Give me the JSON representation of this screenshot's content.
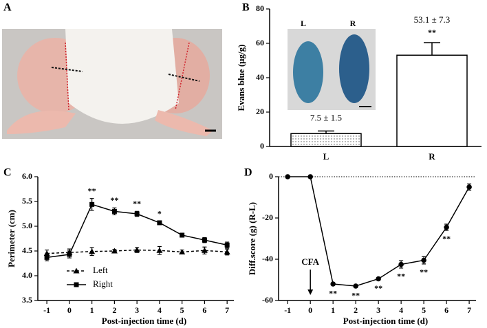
{
  "photo_panel": "A",
  "chart_data": [
    {
      "type": "bar",
      "panel": "B",
      "ylabel": "Evans blue (μg/g)",
      "categories": [
        "L",
        "R"
      ],
      "values": [
        7.5,
        53.1
      ],
      "errors": [
        1.5,
        7.3
      ],
      "value_labels": [
        "7.5 ± 1.5",
        "53.1 ±  7.3"
      ],
      "annotations": [
        null,
        "**"
      ],
      "patterns": [
        "dots",
        "none"
      ],
      "color": "#000000",
      "ylim": [
        0,
        80
      ],
      "yticks": [
        0,
        20,
        40,
        60,
        80
      ],
      "inset_labels": [
        "L",
        "R"
      ]
    },
    {
      "type": "line",
      "panel": "C",
      "xlabel": "Post-injection time (d)",
      "ylabel": "Perimeter (cm)",
      "x": [
        -1,
        0,
        1,
        2,
        3,
        4,
        5,
        6,
        7
      ],
      "series": [
        {
          "name": "Left",
          "color": "#000000",
          "marker": "triangle",
          "linestyle": "dashed",
          "values": [
            4.45,
            4.47,
            4.49,
            4.5,
            4.52,
            4.51,
            4.48,
            4.51,
            4.48
          ],
          "errors": [
            0.07,
            0.07,
            0.08,
            0.03,
            0.05,
            0.08,
            0.04,
            0.07,
            0.06
          ]
        },
        {
          "name": "Right",
          "color": "#000000",
          "marker": "square",
          "linestyle": "solid",
          "values": [
            4.37,
            4.43,
            5.44,
            5.3,
            5.25,
            5.07,
            4.82,
            4.72,
            4.62
          ],
          "errors": [
            0.07,
            0.07,
            0.12,
            0.07,
            0.05,
            0.03,
            0.04,
            0.05,
            0.06
          ]
        }
      ],
      "annotations": [
        null,
        null,
        "**",
        "**",
        "**",
        "*",
        null,
        null,
        null
      ],
      "annotation_series": 1,
      "annotation_side": "above",
      "legend": "lower left",
      "xlim": [
        -1.4,
        7.3
      ],
      "xticks": [
        -1,
        0,
        1,
        2,
        3,
        4,
        5,
        6,
        7
      ],
      "ylim": [
        3.5,
        6.0
      ],
      "yticks": [
        3.5,
        {
          "value": 4,
          "label": "4.0"
        },
        4.5,
        {
          "value": 5,
          "label": "5.0"
        },
        5.5,
        {
          "value": 6,
          "label": "6.0"
        }
      ]
    },
    {
      "type": "line",
      "panel": "D",
      "xlabel": "Post-injection time (d)",
      "ylabel": "Diff.score (g) (R-L)",
      "x": [
        -1,
        0,
        1,
        2,
        3,
        4,
        5,
        6,
        7
      ],
      "series": [
        {
          "name": "R-L",
          "color": "#000000",
          "marker": "circle",
          "linestyle": "solid",
          "values": [
            0,
            0,
            -52,
            -53,
            -49.5,
            -42.5,
            -40.5,
            -24.5,
            -5
          ],
          "errors": [
            0,
            0,
            0.5,
            0.5,
            0.5,
            1.8,
            1.8,
            1.5,
            1.5
          ]
        }
      ],
      "annotations": [
        null,
        null,
        "**",
        "**",
        "**",
        "**",
        "**",
        "**",
        null
      ],
      "annotation_series": 0,
      "annotation_side": "below",
      "arrow_annotation": {
        "text": "CFA",
        "x": 0
      },
      "hline": 0,
      "xlim": [
        -1.4,
        7.3
      ],
      "xticks": [
        -1,
        0,
        1,
        2,
        3,
        4,
        5,
        6,
        7
      ],
      "ylim": [
        -60,
        0
      ],
      "yticks": [
        -60,
        -40,
        -20,
        0
      ]
    }
  ]
}
